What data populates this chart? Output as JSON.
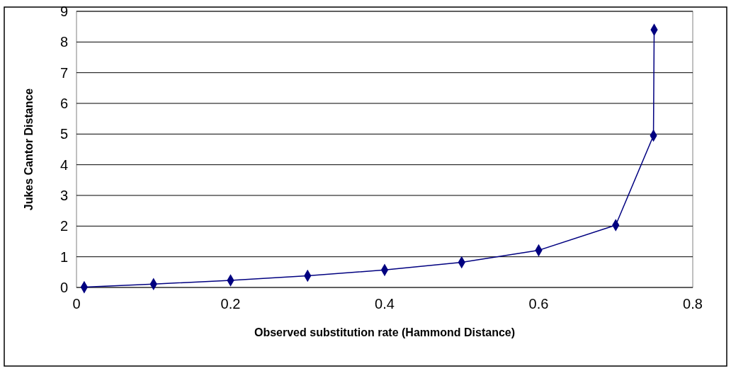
{
  "chart_data": {
    "type": "line",
    "xlabel": "Observed substitution rate (Hammond Distance)",
    "ylabel": "Jukes Cantor Distance",
    "series": [
      {
        "color": "#000080",
        "x": [
          0.01,
          0.1,
          0.2,
          0.3,
          0.4,
          0.5,
          0.6,
          0.7,
          0.749,
          0.7499
        ],
        "values": [
          0.01,
          0.11,
          0.23,
          0.38,
          0.57,
          0.82,
          1.21,
          2.03,
          4.95,
          8.4
        ]
      }
    ],
    "xlim": [
      0,
      0.8
    ],
    "xticks": [
      0,
      0.2,
      0.4,
      0.6,
      0.8
    ],
    "ylim": [
      0,
      9
    ],
    "yticks": [
      0,
      1,
      2,
      3,
      4,
      5,
      6,
      7,
      8,
      9
    ],
    "grid": "y",
    "marker": "diamond",
    "line_style": "solid"
  }
}
